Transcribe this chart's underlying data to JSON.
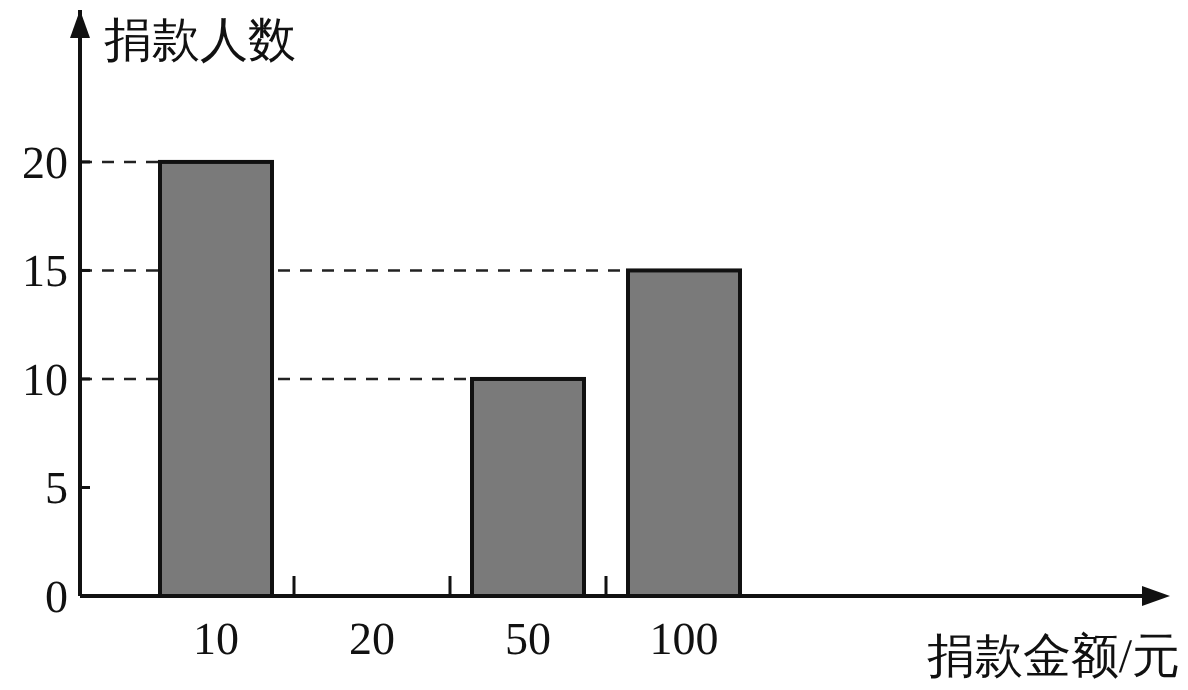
{
  "chart_data": {
    "type": "bar",
    "ylabel": "捐款人数",
    "xlabel": "捐款金额/元",
    "categories": [
      "10",
      "20",
      "50",
      "100"
    ],
    "values": [
      20,
      null,
      10,
      15
    ],
    "color": "#7a7a7a",
    "ylim": [
      0,
      27
    ],
    "yticks": [
      0,
      5,
      10,
      15,
      20
    ],
    "ref_lines": [
      {
        "axis": "y",
        "value": 20,
        "line_style": "dashed"
      },
      {
        "axis": "y",
        "value": 15,
        "line_style": "dashed"
      },
      {
        "axis": "y",
        "value": 10,
        "line_style": "dashed"
      }
    ]
  }
}
